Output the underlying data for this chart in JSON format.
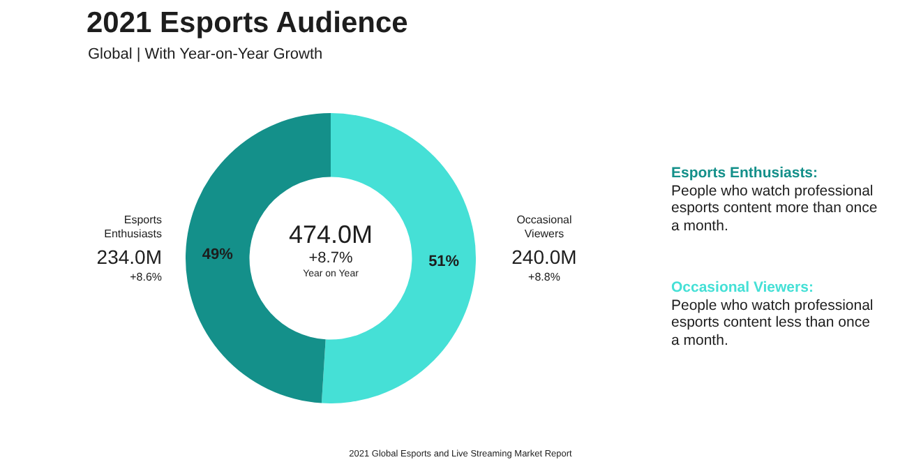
{
  "chart_data": {
    "type": "donut",
    "title": "2021 Esports Audience",
    "subtitle": "Global | With Year-on-Year Growth",
    "categories": [
      "Occasional Viewers",
      "Esports Enthusiasts"
    ],
    "values": [
      51,
      49
    ],
    "value_labels": [
      "51%",
      "49%"
    ],
    "colors": [
      "#45e0d6",
      "#14908a"
    ],
    "legend": false,
    "annotations": [
      "474.0M",
      "+8.7%",
      "Year on Year",
      "240.0M",
      "+8.8%",
      "234.0M",
      "+8.6%",
      "Esports Enthusiasts:",
      "People who watch professional esports content more than once a month.",
      "Occasional Viewers:",
      "People who watch professional esports content less than once a month.",
      "2021 Global Esports and Live Streaming Market Report"
    ]
  }
}
